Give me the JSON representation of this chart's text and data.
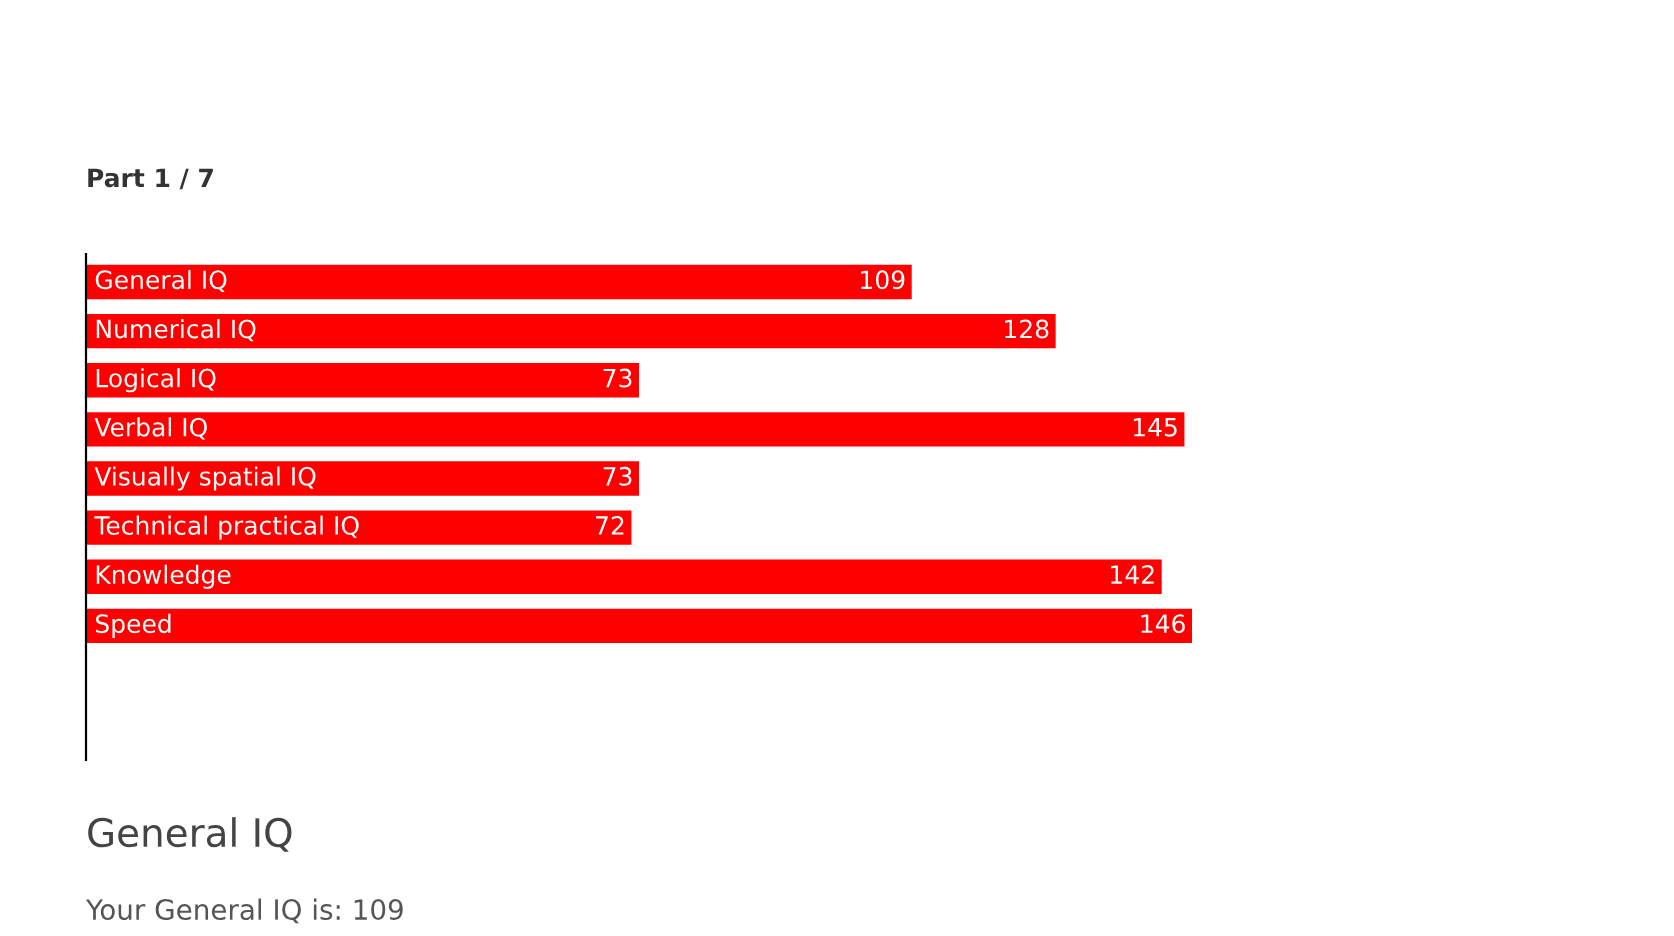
{
  "chart_data": {
    "type": "bar",
    "orientation": "horizontal",
    "title": "Part 1 / 7",
    "categories": [
      "General IQ",
      "Numerical IQ",
      "Logical IQ",
      "Verbal IQ",
      "Visually spatial IQ",
      "Technical practical IQ",
      "Knowledge",
      "Speed"
    ],
    "values": [
      109,
      128,
      73,
      145,
      73,
      72,
      142,
      146
    ],
    "color": "#ff0000",
    "data_labels": true,
    "legend": false,
    "annotations": [
      "General IQ",
      "Your General IQ is: 109"
    ]
  }
}
